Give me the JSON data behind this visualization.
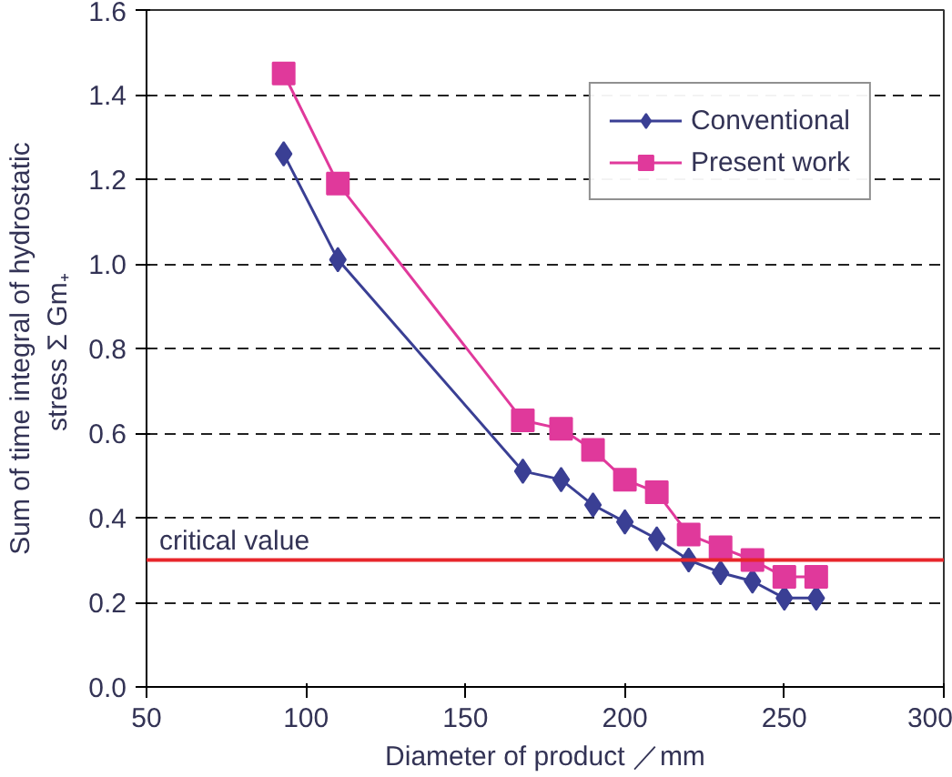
{
  "chart_data": {
    "type": "line",
    "xlabel": "Diameter of product ／mm",
    "ylabel": "Sum of time integral of hydrostatic\nstress  Σ Gm₊",
    "xlim": [
      50,
      300
    ],
    "xticks": [
      50,
      100,
      150,
      200,
      250,
      300
    ],
    "ylim": [
      0,
      1.6
    ],
    "yticks": [
      {
        "value": 0,
        "label": "0.0"
      },
      0.2,
      0.4,
      0.6,
      0.8,
      {
        "value": 1,
        "label": "1.0"
      },
      1.2,
      1.4,
      1.6
    ],
    "grid": "y",
    "legend": "top right",
    "series": [
      {
        "name": "Conventional",
        "color": "#3a3f94",
        "marker": "diamond",
        "x": [
          93,
          110,
          168,
          180,
          190,
          200,
          210,
          220,
          230,
          240,
          250,
          260
        ],
        "values": [
          1.26,
          1.01,
          0.51,
          0.49,
          0.43,
          0.39,
          0.35,
          0.3,
          0.27,
          0.25,
          0.21,
          0.21
        ]
      },
      {
        "name": "Present work",
        "color": "#e0399b",
        "marker": "square",
        "x": [
          93,
          110,
          168,
          180,
          190,
          200,
          210,
          220,
          230,
          240,
          250,
          260
        ],
        "values": [
          1.45,
          1.19,
          0.63,
          0.61,
          0.56,
          0.49,
          0.46,
          0.36,
          0.33,
          0.3,
          0.26,
          0.26
        ]
      }
    ],
    "ref_lines": [
      {
        "axis": "y",
        "value": 0.3,
        "label": "critical value",
        "color": "#e8262b"
      }
    ]
  }
}
